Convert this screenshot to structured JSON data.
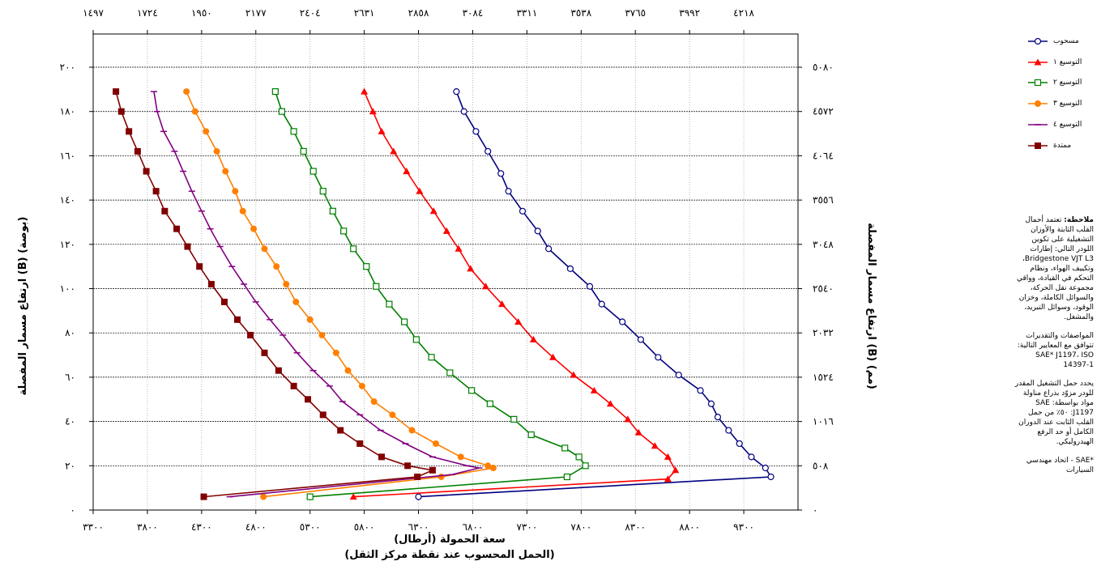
{
  "chart_data": {
    "type": "line",
    "xlabel": "سعة الحمولة (أرطال)",
    "xlabel_sub": "(الحمل المحسوب عند نقطة مركز الثقل)",
    "ylabel_left": "ارتفاع مسمار المفصلة (B) (بوصة)",
    "ylabel_right": "ارتفاع مسمار المفصلة (B) (مم)",
    "xlim": [
      3300,
      9800
    ],
    "ylim": [
      0,
      215
    ],
    "grid": true,
    "x_ticks": [
      3300,
      3800,
      4300,
      4800,
      5300,
      5800,
      6300,
      6800,
      7300,
      7800,
      8300,
      8800,
      9300
    ],
    "x_tick_labels": [
      "٣٣٠٠",
      "٣٨٠٠",
      "٤٣٠٠",
      "٤٨٠٠",
      "٥٣٠٠",
      "٥٨٠٠",
      "٦٣٠٠",
      "٦٨٠٠",
      "٧٣٠٠",
      "٧٨٠٠",
      "٨٣٠٠",
      "٨٨٠٠",
      "٩٣٠٠"
    ],
    "x2_tick_labels": [
      "١٤٩٧",
      "١٧٢٤",
      "١٩٥٠",
      "٢١٧٧",
      "٢٤٠٤",
      "٢٦٣١",
      "٢٨٥٨",
      "٣٠٨٤",
      "٣٣١١",
      "٣٥٣٨",
      "٣٧٦٥",
      "٣٩٩٢",
      "٤٢١٨"
    ],
    "y_ticks": [
      0,
      20,
      40,
      60,
      80,
      100,
      120,
      140,
      160,
      180,
      200
    ],
    "y_tick_labels": [
      "٠",
      "٢٠",
      "٤٠",
      "٦٠",
      "٨٠",
      "١٠٠",
      "١٢٠",
      "١٤٠",
      "١٦٠",
      "١٨٠",
      "٢٠٠"
    ],
    "y2_tick_labels": [
      "٠",
      "٥٠٨",
      "١٠١٦",
      "١٥٢٤",
      "٢٠٣٢",
      "٢٥٤٠",
      "٣٠٤٨",
      "٣٥٥٦",
      "٤٠٦٤",
      "٤٥٧٢",
      "٥٠٨٠"
    ],
    "legend_position": "right",
    "series": [
      {
        "name": "مسحوب",
        "color": "#000080",
        "marker": "circle-open",
        "points": [
          [
            6650,
            189
          ],
          [
            6720,
            180
          ],
          [
            6830,
            171
          ],
          [
            6940,
            162
          ],
          [
            7060,
            152
          ],
          [
            7130,
            144
          ],
          [
            7260,
            135
          ],
          [
            7400,
            126
          ],
          [
            7500,
            118
          ],
          [
            7700,
            109
          ],
          [
            7880,
            101
          ],
          [
            7990,
            93
          ],
          [
            8180,
            85
          ],
          [
            8350,
            77
          ],
          [
            8510,
            69
          ],
          [
            8700,
            61
          ],
          [
            8900,
            54
          ],
          [
            9000,
            48
          ],
          [
            9060,
            42
          ],
          [
            9160,
            36
          ],
          [
            9260,
            30
          ],
          [
            9370,
            24
          ],
          [
            9500,
            19
          ],
          [
            9550,
            15
          ],
          [
            6300,
            6
          ]
        ]
      },
      {
        "name": "التوسيع ١",
        "color": "#ff0000",
        "marker": "triangle",
        "points": [
          [
            5800,
            189
          ],
          [
            5880,
            180
          ],
          [
            5960,
            171
          ],
          [
            6070,
            162
          ],
          [
            6190,
            153
          ],
          [
            6310,
            144
          ],
          [
            6440,
            135
          ],
          [
            6560,
            126
          ],
          [
            6670,
            118
          ],
          [
            6780,
            109
          ],
          [
            6920,
            101
          ],
          [
            7070,
            93
          ],
          [
            7220,
            85
          ],
          [
            7360,
            77
          ],
          [
            7540,
            69
          ],
          [
            7730,
            61
          ],
          [
            7920,
            54
          ],
          [
            8070,
            48
          ],
          [
            8230,
            41
          ],
          [
            8330,
            35
          ],
          [
            8480,
            29
          ],
          [
            8600,
            24
          ],
          [
            8670,
            18
          ],
          [
            8600,
            14
          ],
          [
            5700,
            6
          ]
        ]
      },
      {
        "name": "التوسيع ٢",
        "color": "#008000",
        "marker": "square-open",
        "points": [
          [
            4980,
            189
          ],
          [
            5040,
            180
          ],
          [
            5150,
            171
          ],
          [
            5240,
            162
          ],
          [
            5330,
            153
          ],
          [
            5420,
            144
          ],
          [
            5510,
            135
          ],
          [
            5610,
            126
          ],
          [
            5700,
            118
          ],
          [
            5820,
            110
          ],
          [
            5910,
            101
          ],
          [
            6030,
            93
          ],
          [
            6170,
            85
          ],
          [
            6280,
            77
          ],
          [
            6420,
            69
          ],
          [
            6590,
            62
          ],
          [
            6790,
            54
          ],
          [
            6960,
            48
          ],
          [
            7180,
            41
          ],
          [
            7340,
            34
          ],
          [
            7650,
            28
          ],
          [
            7780,
            24
          ],
          [
            7840,
            20
          ],
          [
            7670,
            15
          ],
          [
            5300,
            6
          ]
        ]
      },
      {
        "name": "التوسيع ٣",
        "color": "#ff8000",
        "marker": "circle-filled",
        "points": [
          [
            4160,
            189
          ],
          [
            4240,
            180
          ],
          [
            4340,
            171
          ],
          [
            4440,
            162
          ],
          [
            4520,
            153
          ],
          [
            4610,
            144
          ],
          [
            4680,
            135
          ],
          [
            4780,
            127
          ],
          [
            4880,
            118
          ],
          [
            4990,
            110
          ],
          [
            5080,
            102
          ],
          [
            5170,
            94
          ],
          [
            5300,
            86
          ],
          [
            5410,
            79
          ],
          [
            5540,
            71
          ],
          [
            5650,
            63
          ],
          [
            5780,
            56
          ],
          [
            5890,
            49
          ],
          [
            6060,
            43
          ],
          [
            6240,
            36
          ],
          [
            6460,
            30
          ],
          [
            6690,
            24
          ],
          [
            6940,
            20
          ],
          [
            6990,
            19
          ],
          [
            6510,
            15
          ],
          [
            4870,
            6
          ]
        ]
      },
      {
        "name": "التوسيع ٤",
        "color": "#800080",
        "marker": "dash",
        "points": [
          [
            3860,
            189
          ],
          [
            3890,
            180
          ],
          [
            3950,
            171
          ],
          [
            4050,
            162
          ],
          [
            4130,
            153
          ],
          [
            4210,
            144
          ],
          [
            4300,
            135
          ],
          [
            4380,
            127
          ],
          [
            4470,
            119
          ],
          [
            4580,
            110
          ],
          [
            4690,
            102
          ],
          [
            4800,
            94
          ],
          [
            4930,
            86
          ],
          [
            5050,
            79
          ],
          [
            5180,
            71
          ],
          [
            5330,
            63
          ],
          [
            5480,
            56
          ],
          [
            5600,
            49
          ],
          [
            5760,
            43
          ],
          [
            5950,
            36
          ],
          [
            6180,
            30
          ],
          [
            6430,
            24
          ],
          [
            6750,
            20
          ],
          [
            6860,
            19
          ],
          [
            6610,
            16
          ],
          [
            4560,
            6
          ]
        ]
      },
      {
        "name": "ممتدة",
        "color": "#800000",
        "marker": "square-filled",
        "points": [
          [
            3510,
            189
          ],
          [
            3560,
            180
          ],
          [
            3630,
            171
          ],
          [
            3710,
            162
          ],
          [
            3790,
            153
          ],
          [
            3880,
            144
          ],
          [
            3960,
            135
          ],
          [
            4070,
            127
          ],
          [
            4170,
            119
          ],
          [
            4280,
            110
          ],
          [
            4390,
            102
          ],
          [
            4510,
            94
          ],
          [
            4630,
            86
          ],
          [
            4750,
            79
          ],
          [
            4880,
            71
          ],
          [
            5010,
            63
          ],
          [
            5150,
            56
          ],
          [
            5280,
            50
          ],
          [
            5420,
            43
          ],
          [
            5580,
            36
          ],
          [
            5760,
            30
          ],
          [
            5960,
            24
          ],
          [
            6200,
            20
          ],
          [
            6430,
            18
          ],
          [
            6290,
            15
          ],
          [
            4320,
            6
          ]
        ]
      }
    ]
  },
  "notes": {
    "note_label": "ملاحظة:",
    "note_text": "تعتمد أحمال القلب الثابتة والأوزان التشغيلية على تكوين اللودر التالي: إطارات Bridgestone VJT L3، وتكييف الهواء، ونظام التحكم في القيادة، وواقي مجموعة نقل الحركة، والسوائل الكاملة، وخزان الوقود، وسوائل التبريد، والمشغل.",
    "specs_title": "المواصفات والتقديرات",
    "specs_text": "تتوافق مع المعايير التالية: SAE* J1197، ISO 14397-1",
    "rated_text": "يحدد حمل التشغيل المقدر للودر مزوّد بذراع مناولة مواد بواسطة: SAE J1197: ٥٠٪ من حمل القلب الثابت عند الدوران الكامل أو حد الرفع الهيدروليكي.",
    "footnote": "*SAE - اتحاد مهندسي السيارات"
  }
}
